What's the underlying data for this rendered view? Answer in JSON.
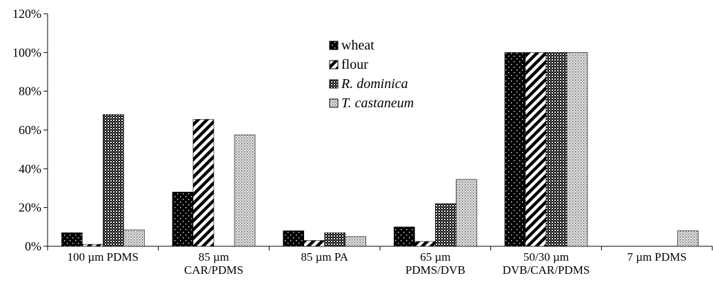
{
  "chart_data": {
    "type": "bar",
    "categories": [
      [
        "100 µm PDMS"
      ],
      [
        "85 µm",
        "CAR/PDMS"
      ],
      [
        "85 µm PA"
      ],
      [
        "65 µm",
        "PDMS/DVB"
      ],
      [
        "50/30 µm",
        "DVB/CAR/PDMS"
      ],
      [
        "7 µm PDMS"
      ]
    ],
    "series": [
      {
        "name": "wheat",
        "italic": false,
        "pattern": "wheat",
        "values": [
          7,
          28,
          8,
          10,
          100,
          0
        ]
      },
      {
        "name": "flour",
        "italic": false,
        "pattern": "flour",
        "values": [
          1,
          65.5,
          3,
          2.5,
          100,
          0
        ]
      },
      {
        "name": "R. dominica",
        "italic": true,
        "pattern": "rdominica",
        "values": [
          68,
          0,
          7,
          22,
          100,
          0
        ]
      },
      {
        "name": "T. castaneum",
        "italic": true,
        "pattern": "tcastaneum",
        "values": [
          8.5,
          57.5,
          5,
          34.5,
          100,
          8
        ]
      }
    ],
    "yticks": [
      "0%",
      "20%",
      "40%",
      "60%",
      "80%",
      "100%",
      "120%"
    ],
    "ylim": [
      0,
      120
    ],
    "grid": false,
    "legend_position": "top-center"
  }
}
